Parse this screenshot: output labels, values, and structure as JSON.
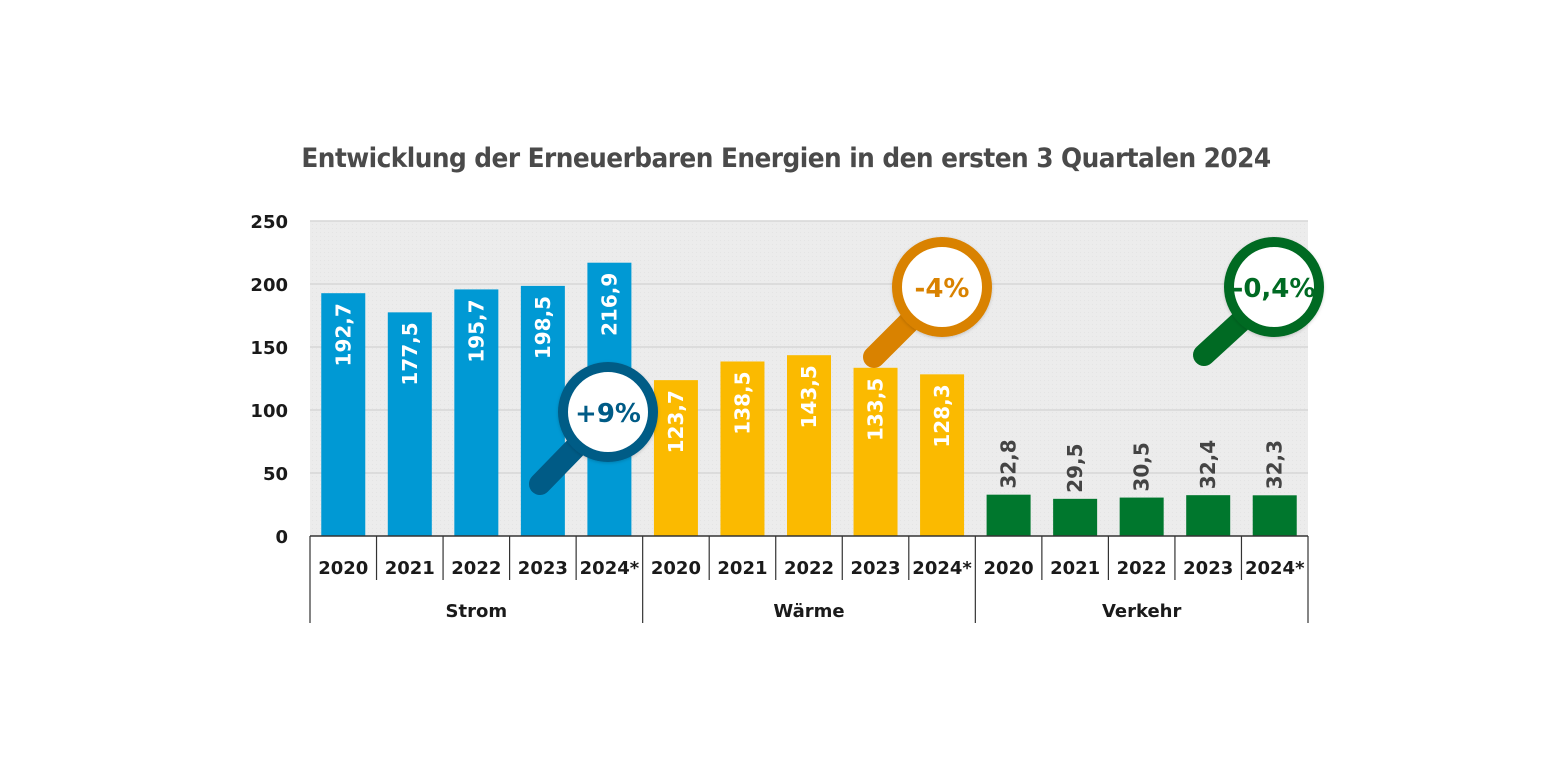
{
  "chart_data": {
    "type": "bar",
    "title": "Entwicklung der Erneuerbaren Energien in den ersten 3 Quartalen 2024",
    "xlabel": "",
    "ylabel": "",
    "ylim": [
      0,
      250
    ],
    "yticks": [
      0,
      50,
      100,
      150,
      200,
      250
    ],
    "grid": true,
    "categories": [
      "2020",
      "2021",
      "2022",
      "2023",
      "2024*"
    ],
    "series": [
      {
        "name": "Strom",
        "color": "#0099d4",
        "label_color": "#ffffff",
        "values": [
          192.7,
          177.5,
          195.7,
          198.5,
          216.9
        ],
        "value_labels": [
          "192,7",
          "177,5",
          "195,7",
          "198,5",
          "216,9"
        ],
        "change_label": "+9%",
        "change_color": "#005b86"
      },
      {
        "name": "Wärme",
        "color": "#fbba00",
        "label_color": "#ffffff",
        "values": [
          123.7,
          138.5,
          143.5,
          133.5,
          128.3
        ],
        "value_labels": [
          "123,7",
          "138,5",
          "143,5",
          "133,5",
          "128,3"
        ],
        "change_label": "-4%",
        "change_color": "#d98200"
      },
      {
        "name": "Verkehr",
        "color": "#00772d",
        "label_color": "#444444",
        "values": [
          32.8,
          29.5,
          30.5,
          32.4,
          32.3
        ],
        "value_labels": [
          "32,8",
          "29,5",
          "30,5",
          "32,4",
          "32,3"
        ],
        "change_label": "-0,4%",
        "change_color": "#006a23"
      }
    ],
    "background_color": "#ececec",
    "gridline_color": "#d6d6d6"
  }
}
